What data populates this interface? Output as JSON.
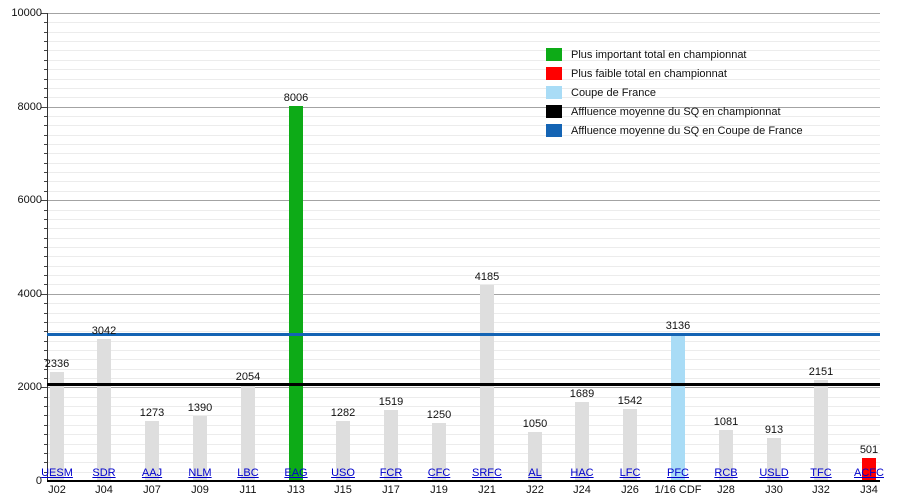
{
  "legend": {
    "position": "top-right",
    "items": [
      {
        "name": "max-championnat",
        "label": "Plus important total en championnat",
        "color": "#0dab17"
      },
      {
        "name": "min-championnat",
        "label": "Plus faible total en championnat",
        "color": "#ff0000"
      },
      {
        "name": "coupe-de-france",
        "label": "Coupe de France",
        "color": "#a9dcf6"
      },
      {
        "name": "avg-championnat",
        "label": "Affluence moyenne du SQ en championnat",
        "color": "#000000"
      },
      {
        "name": "avg-coupe-de-france",
        "label": "Affluence moyenne du SQ en Coupe de France",
        "color": "#1464b4"
      }
    ]
  },
  "chart_data": {
    "type": "bar",
    "title": "",
    "xlabel": "",
    "ylabel": "",
    "ylim": [
      0,
      10000
    ],
    "y_ticks": [
      0,
      2000,
      4000,
      6000,
      8000,
      10000
    ],
    "minor_grid_step": 200,
    "major_grid_step": 2000,
    "grid": true,
    "legend_position": "top-right",
    "categories": [
      "UESM",
      "SDR",
      "AAJ",
      "NLM",
      "LBC",
      "EAG",
      "USO",
      "FCR",
      "CFC",
      "SRFC",
      "AL",
      "HAC",
      "LFC",
      "PFC",
      "RCB",
      "USLD",
      "TFC",
      "ACFC"
    ],
    "matchdays": [
      "J02",
      "J04",
      "J07",
      "J09",
      "J11",
      "J13",
      "J15",
      "J17",
      "J19",
      "J21",
      "J22",
      "J24",
      "J26",
      "1/16 CDF",
      "J28",
      "J30",
      "J32",
      "J34"
    ],
    "values": [
      2336,
      3042,
      1273,
      1390,
      2054,
      8006,
      1282,
      1519,
      1250,
      4185,
      1050,
      1689,
      1542,
      3136,
      1081,
      913,
      2151,
      501
    ],
    "bar_types": [
      "default",
      "default",
      "default",
      "default",
      "default",
      "max_championnat",
      "default",
      "default",
      "default",
      "default",
      "default",
      "default",
      "default",
      "coupe_de_france",
      "default",
      "default",
      "default",
      "min_championnat"
    ],
    "colors": {
      "default": "#dedede",
      "max_championnat": "#0dab17",
      "min_championnat": "#ff0000",
      "coupe_de_france": "#a9dcf6"
    },
    "reference_lines": [
      {
        "name": "avg-line-championnat",
        "label": "Affluence moyenne du SQ en championnat",
        "value": 2074,
        "color": "#000000"
      },
      {
        "name": "avg-line-cdf",
        "label": "Affluence moyenne du SQ en Coupe de France",
        "value": 3136,
        "color": "#1464b4"
      }
    ]
  }
}
